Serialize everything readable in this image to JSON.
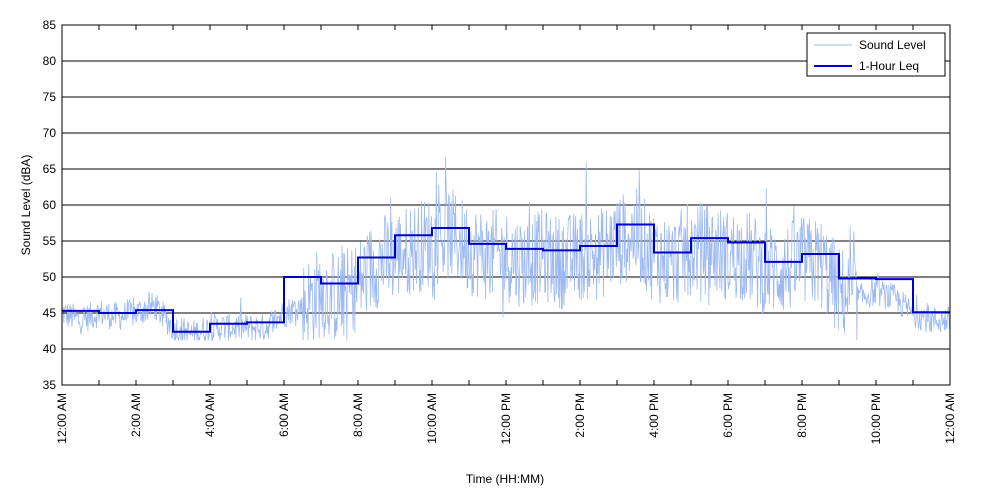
{
  "chart_data": {
    "type": "line",
    "title": "",
    "xlabel": "Time (HH:MM)",
    "ylabel": "Sound Level (dBA)",
    "xlim": [
      0,
      24
    ],
    "ylim": [
      35,
      85
    ],
    "yticks": [
      35,
      40,
      45,
      50,
      55,
      60,
      65,
      70,
      75,
      80,
      85
    ],
    "xticks": [
      {
        "hour": 0,
        "label": "12:00 AM"
      },
      {
        "hour": 2,
        "label": "2:00 AM"
      },
      {
        "hour": 4,
        "label": "4:00 AM"
      },
      {
        "hour": 6,
        "label": "6:00 AM"
      },
      {
        "hour": 8,
        "label": "8:00 AM"
      },
      {
        "hour": 10,
        "label": "10:00 AM"
      },
      {
        "hour": 12,
        "label": "12:00 PM"
      },
      {
        "hour": 14,
        "label": "2:00 PM"
      },
      {
        "hour": 16,
        "label": "4:00 PM"
      },
      {
        "hour": 18,
        "label": "6:00 PM"
      },
      {
        "hour": 20,
        "label": "8:00 PM"
      },
      {
        "hour": 22,
        "label": "10:00 PM"
      },
      {
        "hour": 24,
        "label": "12:00 AM"
      }
    ],
    "grid": "horizontal",
    "legend": {
      "placement": "top-right",
      "entries": [
        {
          "label": "Sound Level",
          "color": "#9db9f2"
        },
        {
          "label": "1-Hour Leq",
          "color": "#0000cc"
        }
      ]
    },
    "series": [
      {
        "name": "Sound Level",
        "color": "#9db9f2",
        "x_hour": [
          0,
          0.5,
          1,
          1.5,
          2,
          2.5,
          3,
          3.5,
          4,
          4.5,
          5,
          5.5,
          6,
          6.5,
          7,
          7.5,
          8,
          8.5,
          9,
          9.5,
          10,
          10.5,
          11,
          11.5,
          12,
          12.5,
          13,
          13.5,
          14,
          14.5,
          15,
          15.5,
          16,
          16.5,
          17,
          17.5,
          18,
          18.5,
          19,
          19.5,
          20,
          20.5,
          21,
          21.5,
          22,
          22.5,
          23,
          23.5,
          24
        ],
        "y": [
          45,
          44,
          45,
          44.5,
          45,
          46,
          43,
          42,
          43,
          43,
          43,
          43,
          45,
          46,
          48,
          47,
          49,
          52,
          53,
          54,
          55,
          56,
          54,
          53,
          53,
          52,
          53,
          52,
          53,
          53,
          55,
          56,
          53,
          52,
          54,
          54,
          53,
          53,
          51,
          51,
          52,
          52,
          48,
          47,
          48,
          47,
          45,
          44,
          44
        ]
      },
      {
        "name": "1-Hour Leq",
        "color": "#0000cc",
        "step": true,
        "hour_start": [
          0,
          1,
          2,
          3,
          4,
          5,
          6,
          7,
          8,
          9,
          10,
          11,
          12,
          13,
          14,
          15,
          16,
          17,
          18,
          19,
          20,
          21,
          22,
          23
        ],
        "leq": [
          45.3,
          45.0,
          45.4,
          42.4,
          43.5,
          43.7,
          50.0,
          49.1,
          52.7,
          55.8,
          56.8,
          54.6,
          53.9,
          53.7,
          54.3,
          57.3,
          53.4,
          55.4,
          54.8,
          52.1,
          53.2,
          49.8,
          49.7,
          45.1
        ]
      }
    ]
  }
}
